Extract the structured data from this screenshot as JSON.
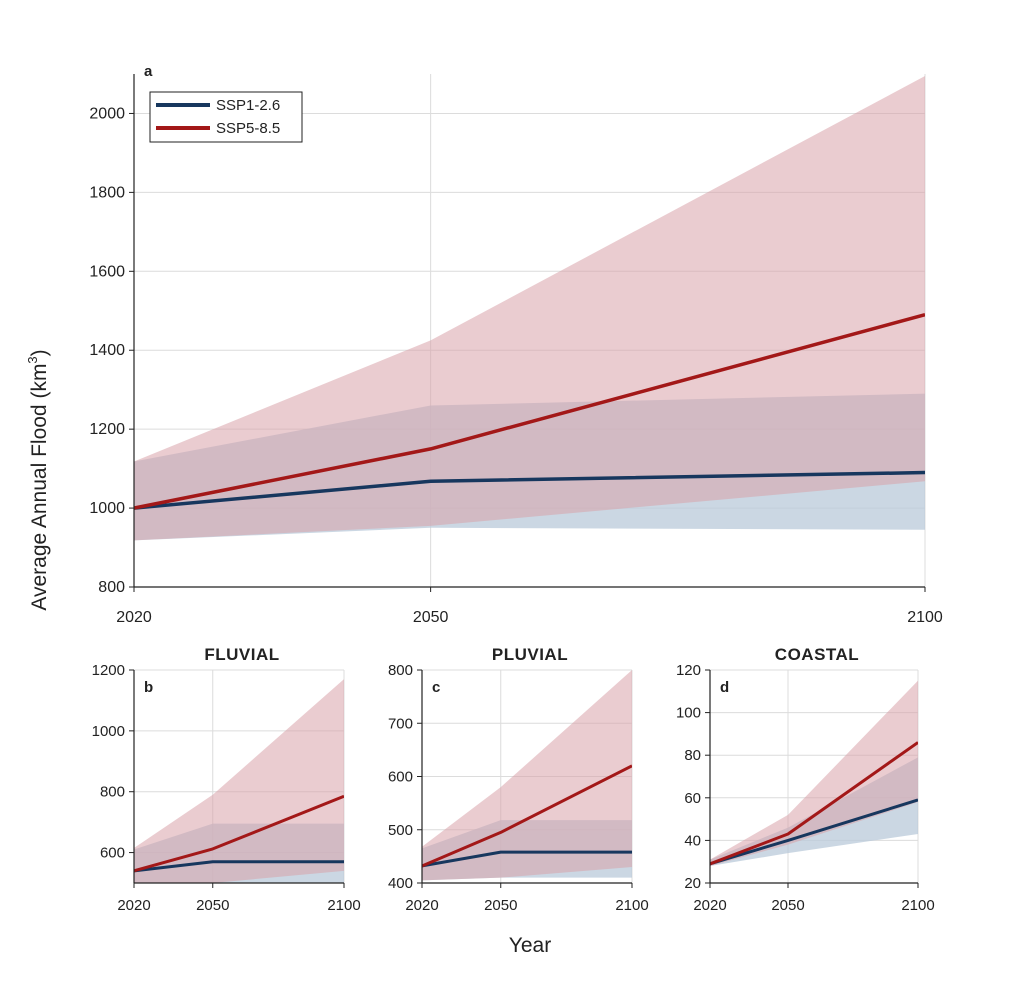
{
  "colors": {
    "ssp1": "#17375e",
    "ssp5": "#a31818",
    "ssp1_band": "#b9cad9",
    "ssp5_band": "#d9a2aa",
    "grid": "#dcdcdc",
    "axis": "#222222"
  },
  "figure": {
    "ylabel": "Average Annual Flood (km",
    "ylabel_sup": "3",
    "ylabel_close": ")",
    "xlabel": "Year"
  },
  "legend": {
    "placement": "top-left",
    "entries": [
      "SSP1-2.6",
      "SSP5-8.5"
    ]
  },
  "chart_data": [
    {
      "id": "a",
      "letter": "a",
      "title": "",
      "type": "area",
      "x": [
        2020,
        2050,
        2100
      ],
      "xticks": [
        2020,
        2050,
        2100
      ],
      "ylim": [
        800,
        2100
      ],
      "yticks": [
        800,
        1000,
        1200,
        1400,
        1600,
        1800,
        2000
      ],
      "grid": true,
      "series": [
        {
          "name": "SSP1-2.6",
          "values": [
            1000,
            1068,
            1090
          ],
          "lower": [
            918,
            950,
            945
          ],
          "upper": [
            1118,
            1260,
            1290
          ]
        },
        {
          "name": "SSP5-8.5",
          "values": [
            1000,
            1150,
            1490
          ],
          "lower": [
            918,
            955,
            1068
          ],
          "upper": [
            1118,
            1425,
            2095
          ]
        }
      ]
    },
    {
      "id": "b",
      "letter": "b",
      "title": "FLUVIAL",
      "type": "area",
      "x": [
        2020,
        2050,
        2100
      ],
      "xticks": [
        2020,
        2050,
        2100
      ],
      "ylim": [
        500,
        1200
      ],
      "yticks": [
        600,
        800,
        1000,
        1200
      ],
      "grid": true,
      "series": [
        {
          "name": "SSP1-2.6",
          "values": [
            540,
            570,
            570
          ],
          "lower": [
            500,
            500,
            500
          ],
          "upper": [
            610,
            695,
            695
          ]
        },
        {
          "name": "SSP5-8.5",
          "values": [
            540,
            612,
            785
          ],
          "lower": [
            500,
            500,
            540
          ],
          "upper": [
            615,
            790,
            1170
          ]
        }
      ]
    },
    {
      "id": "c",
      "letter": "c",
      "title": "PLUVIAL",
      "type": "area",
      "x": [
        2020,
        2050,
        2100
      ],
      "xticks": [
        2020,
        2050,
        2100
      ],
      "ylim": [
        400,
        800
      ],
      "yticks": [
        400,
        500,
        600,
        700,
        800
      ],
      "grid": true,
      "series": [
        {
          "name": "SSP1-2.6",
          "values": [
            432,
            458,
            458
          ],
          "lower": [
            405,
            410,
            410
          ],
          "upper": [
            465,
            518,
            518
          ]
        },
        {
          "name": "SSP5-8.5",
          "values": [
            432,
            495,
            620
          ],
          "lower": [
            405,
            410,
            430
          ],
          "upper": [
            468,
            580,
            800
          ]
        }
      ]
    },
    {
      "id": "d",
      "letter": "d",
      "title": "COASTAL",
      "type": "area",
      "x": [
        2020,
        2050,
        2100
      ],
      "xticks": [
        2020,
        2050,
        2100
      ],
      "ylim": [
        20,
        120
      ],
      "yticks": [
        20,
        40,
        60,
        80,
        100,
        120
      ],
      "grid": true,
      "series": [
        {
          "name": "SSP1-2.6",
          "values": [
            29,
            40,
            59
          ],
          "lower": [
            28,
            34,
            43
          ],
          "upper": [
            31,
            46,
            79
          ]
        },
        {
          "name": "SSP5-8.5",
          "values": [
            29,
            43,
            86
          ],
          "lower": [
            28,
            38,
            58
          ],
          "upper": [
            31,
            52,
            115
          ]
        }
      ]
    }
  ]
}
